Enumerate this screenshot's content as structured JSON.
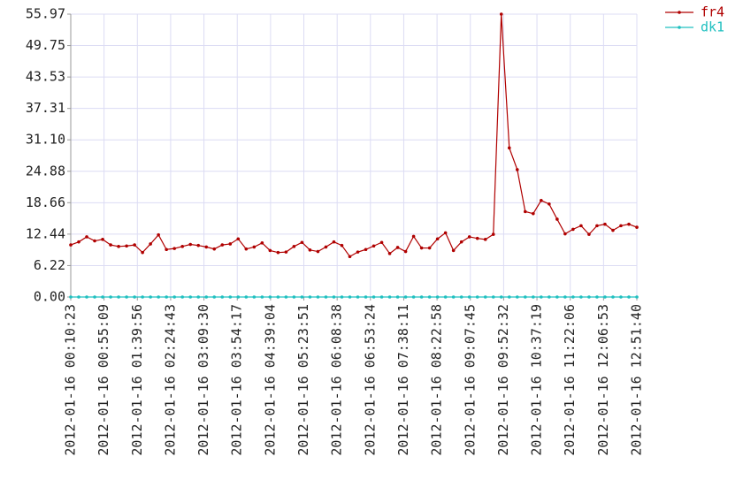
{
  "chart_data": {
    "type": "line",
    "x": [
      "2012-01-16 00:10:23",
      "2012-01-16 00:21:06",
      "2012-01-16 00:31:50",
      "2012-01-16 00:42:33",
      "2012-01-16 00:53:16",
      "2012-01-16 01:04:00",
      "2012-01-16 01:14:43",
      "2012-01-16 01:25:26",
      "2012-01-16 01:36:10",
      "2012-01-16 01:46:53",
      "2012-01-16 01:57:36",
      "2012-01-16 02:08:20",
      "2012-01-16 02:19:03",
      "2012-01-16 02:29:46",
      "2012-01-16 02:40:30",
      "2012-01-16 02:51:13",
      "2012-01-16 03:01:57",
      "2012-01-16 03:12:40",
      "2012-01-16 03:23:23",
      "2012-01-16 03:34:06",
      "2012-01-16 03:44:50",
      "2012-01-16 03:55:33",
      "2012-01-16 04:06:16",
      "2012-01-16 04:17:00",
      "2012-01-16 04:27:43",
      "2012-01-16 04:38:26",
      "2012-01-16 04:49:10",
      "2012-01-16 04:59:53",
      "2012-01-16 05:10:36",
      "2012-01-16 05:21:20",
      "2012-01-16 05:32:03",
      "2012-01-16 05:42:46",
      "2012-01-16 05:53:30",
      "2012-01-16 06:04:13",
      "2012-01-16 06:14:56",
      "2012-01-16 06:25:40",
      "2012-01-16 06:36:23",
      "2012-01-16 06:47:07",
      "2012-01-16 06:57:50",
      "2012-01-16 07:08:33",
      "2012-01-16 07:19:17",
      "2012-01-16 07:30:00",
      "2012-01-16 07:40:43",
      "2012-01-16 07:51:27",
      "2012-01-16 08:02:10",
      "2012-01-16 08:12:53",
      "2012-01-16 08:23:37",
      "2012-01-16 08:34:20",
      "2012-01-16 08:45:03",
      "2012-01-16 08:55:47",
      "2012-01-16 09:06:30",
      "2012-01-16 09:17:13",
      "2012-01-16 09:27:57",
      "2012-01-16 09:38:40",
      "2012-01-16 09:49:23",
      "2012-01-16 10:00:07",
      "2012-01-16 10:10:50",
      "2012-01-16 10:21:33",
      "2012-01-16 10:32:17",
      "2012-01-16 10:43:00",
      "2012-01-16 10:53:43",
      "2012-01-16 11:04:27",
      "2012-01-16 11:15:10",
      "2012-01-16 11:25:53",
      "2012-01-16 11:36:37",
      "2012-01-16 11:47:20",
      "2012-01-16 11:58:03",
      "2012-01-16 12:08:47",
      "2012-01-16 12:19:30",
      "2012-01-16 12:30:13",
      "2012-01-16 12:40:57",
      "2012-01-16 12:51:40"
    ],
    "series": [
      {
        "name": "fr4",
        "color": "#b00000",
        "values": [
          10.3,
          10.9,
          11.9,
          11.1,
          11.4,
          10.3,
          10.0,
          10.1,
          10.3,
          8.8,
          10.5,
          12.3,
          9.4,
          9.6,
          10.0,
          10.4,
          10.2,
          9.9,
          9.5,
          10.3,
          10.5,
          11.5,
          9.5,
          9.9,
          10.7,
          9.2,
          8.8,
          8.9,
          10.0,
          10.8,
          9.3,
          9.0,
          9.9,
          10.9,
          10.2,
          8.0,
          8.9,
          9.4,
          10.1,
          10.8,
          8.6,
          9.8,
          9.0,
          12.0,
          9.7,
          9.7,
          11.5,
          12.7,
          9.2,
          10.9,
          11.9,
          11.6,
          11.4,
          12.4,
          55.97,
          29.5,
          25.2,
          16.9,
          16.5,
          19.1,
          18.4,
          15.4,
          12.5,
          13.4,
          14.1,
          12.4,
          14.1,
          14.4,
          13.2,
          14.1,
          14.4,
          13.8
        ]
      },
      {
        "name": "dk1",
        "color": "#20c0c0",
        "values": [
          0,
          0,
          0,
          0,
          0,
          0,
          0,
          0,
          0,
          0,
          0,
          0,
          0,
          0,
          0,
          0,
          0,
          0,
          0,
          0,
          0,
          0,
          0,
          0,
          0,
          0,
          0,
          0,
          0,
          0,
          0,
          0,
          0,
          0,
          0,
          0,
          0,
          0,
          0,
          0,
          0,
          0,
          0,
          0,
          0,
          0,
          0,
          0,
          0,
          0,
          0,
          0,
          0,
          0,
          0,
          0,
          0,
          0,
          0,
          0,
          0,
          0,
          0,
          0,
          0,
          0,
          0,
          0,
          0,
          0,
          0,
          0
        ]
      }
    ],
    "xlim": [
      "2012-01-16 00:10:23",
      "2012-01-16 12:51:40"
    ],
    "xticks": [
      "2012-01-16 00:10:23",
      "2012-01-16 00:55:09",
      "2012-01-16 01:39:56",
      "2012-01-16 02:24:43",
      "2012-01-16 03:09:30",
      "2012-01-16 03:54:17",
      "2012-01-16 04:39:04",
      "2012-01-16 05:23:51",
      "2012-01-16 06:08:38",
      "2012-01-16 06:53:24",
      "2012-01-16 07:38:11",
      "2012-01-16 08:22:58",
      "2012-01-16 09:07:45",
      "2012-01-16 09:52:32",
      "2012-01-16 10:37:19",
      "2012-01-16 11:22:06",
      "2012-01-16 12:06:53",
      "2012-01-16 12:51:40"
    ],
    "ylim": [
      0,
      55.97
    ],
    "yticks": [
      {
        "value": 0,
        "label": "0.00"
      },
      6.22,
      12.44,
      18.66,
      24.88,
      {
        "value": 31.1,
        "label": "31.10"
      },
      37.31,
      43.53,
      49.75,
      55.97
    ],
    "grid": true,
    "legend": "top-right"
  }
}
